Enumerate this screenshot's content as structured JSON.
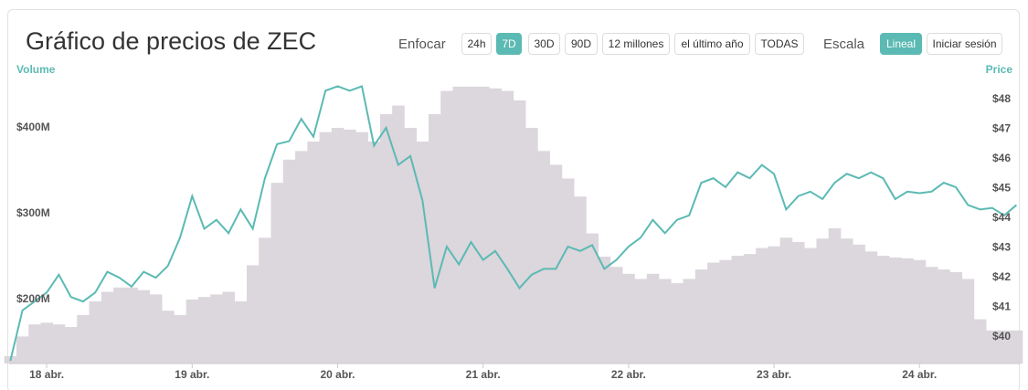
{
  "header": {
    "title": "Gráfico de precios de ZEC",
    "zoom_label": "Enfocar",
    "zoom_buttons": [
      "24h",
      "7D",
      "30D",
      "90D",
      "12 millones",
      "el último año",
      "TODAS"
    ],
    "zoom_active": 1,
    "scale_label": "Escala",
    "scale_buttons": [
      "Lineal",
      "Iniciar sesión"
    ],
    "scale_active": 0
  },
  "chart_data": {
    "type": "bar-line",
    "y_label": "Volume",
    "y2_label": "Price",
    "x": [
      -6,
      -4,
      -2,
      0,
      2,
      4,
      6,
      8,
      10,
      12,
      14,
      16,
      18,
      20,
      22,
      24,
      26,
      28,
      30,
      32,
      34,
      36,
      38,
      40,
      42,
      44,
      46,
      48,
      50,
      52,
      54,
      56,
      58,
      60,
      62,
      64,
      66,
      68,
      70,
      72,
      74,
      76,
      78,
      80,
      82,
      84,
      86,
      88,
      90,
      92,
      94,
      96,
      98,
      100,
      102,
      104,
      106,
      108,
      110,
      112,
      114,
      116,
      118,
      120,
      122,
      124,
      126,
      128,
      130,
      132,
      134,
      136,
      138,
      140,
      142,
      144,
      146,
      148,
      150,
      152,
      154,
      156,
      158,
      160
    ],
    "xlim": [
      -6.2,
      160.7
    ],
    "xticks": [
      {
        "value": 0,
        "label": "18 abr."
      },
      {
        "value": 24,
        "label": "19 abr."
      },
      {
        "value": 48,
        "label": "20 abr."
      },
      {
        "value": 72,
        "label": "21 abr."
      },
      {
        "value": 96,
        "label": "22 abr."
      },
      {
        "value": 120,
        "label": "23 abr."
      },
      {
        "value": 144,
        "label": "24 abr."
      }
    ],
    "ylim": [
      125.5,
      458.5
    ],
    "yticks": [
      {
        "value": 200,
        "label": "$200M"
      },
      {
        "value": 300,
        "label": "$300M"
      },
      {
        "value": 400,
        "label": "$400M"
      }
    ],
    "y2lim": [
      39.11,
      48.74
    ],
    "y2ticks": [
      {
        "value": 40,
        "label": "$40"
      },
      {
        "value": 41,
        "label": "$41"
      },
      {
        "value": 42,
        "label": "$42"
      },
      {
        "value": 43,
        "label": "$43"
      },
      {
        "value": 44,
        "label": "$44"
      },
      {
        "value": 45,
        "label": "$45"
      },
      {
        "value": 46,
        "label": "$46"
      },
      {
        "value": 47,
        "label": "$47"
      },
      {
        "value": 48,
        "label": "$48"
      }
    ],
    "series": [
      {
        "name": "Volume",
        "kind": "bar",
        "color": "#dcd6dd",
        "values": [
          134,
          157,
          171,
          173,
          171,
          168,
          182,
          198,
          209,
          214,
          214,
          211,
          206,
          187,
          182,
          200,
          203,
          206,
          209,
          198,
          240,
          272,
          336,
          363,
          373,
          384,
          395,
          400,
          398,
          395,
          384,
          416,
          426,
          400,
          384,
          416,
          443,
          448,
          448,
          448,
          446,
          443,
          432,
          400,
          373,
          357,
          341,
          320,
          277,
          250,
          238,
          230,
          224,
          230,
          224,
          219,
          224,
          235,
          243,
          246,
          251,
          253,
          260,
          262,
          272,
          267,
          260,
          271,
          283,
          271,
          264,
          256,
          251,
          249,
          248,
          246,
          238,
          235,
          232,
          224,
          177,
          164,
          164,
          164
        ]
      },
      {
        "name": "Price",
        "kind": "line",
        "axis": "y2",
        "color": "#5bbab3",
        "values": [
          39.2,
          40.9,
          41.2,
          41.5,
          42.1,
          41.35,
          41.2,
          41.5,
          42.2,
          42.0,
          41.7,
          42.2,
          42.0,
          42.4,
          43.35,
          44.75,
          43.65,
          43.95,
          43.5,
          44.3,
          43.65,
          45.35,
          46.5,
          46.6,
          47.35,
          46.75,
          48.3,
          48.45,
          48.3,
          48.45,
          46.45,
          47.05,
          45.8,
          46.1,
          44.6,
          41.65,
          43.05,
          42.45,
          43.2,
          42.6,
          42.9,
          42.3,
          41.65,
          42.1,
          42.3,
          42.3,
          43.05,
          42.9,
          43.1,
          42.3,
          42.6,
          43.05,
          43.35,
          43.95,
          43.5,
          43.95,
          44.1,
          45.2,
          45.35,
          45.05,
          45.55,
          45.35,
          45.8,
          45.5,
          44.3,
          44.75,
          44.9,
          44.65,
          45.2,
          45.5,
          45.35,
          45.55,
          45.35,
          44.65,
          44.9,
          44.85,
          44.9,
          45.2,
          45.05,
          44.45,
          44.3,
          44.35,
          44.1,
          44.45
        ]
      }
    ]
  }
}
